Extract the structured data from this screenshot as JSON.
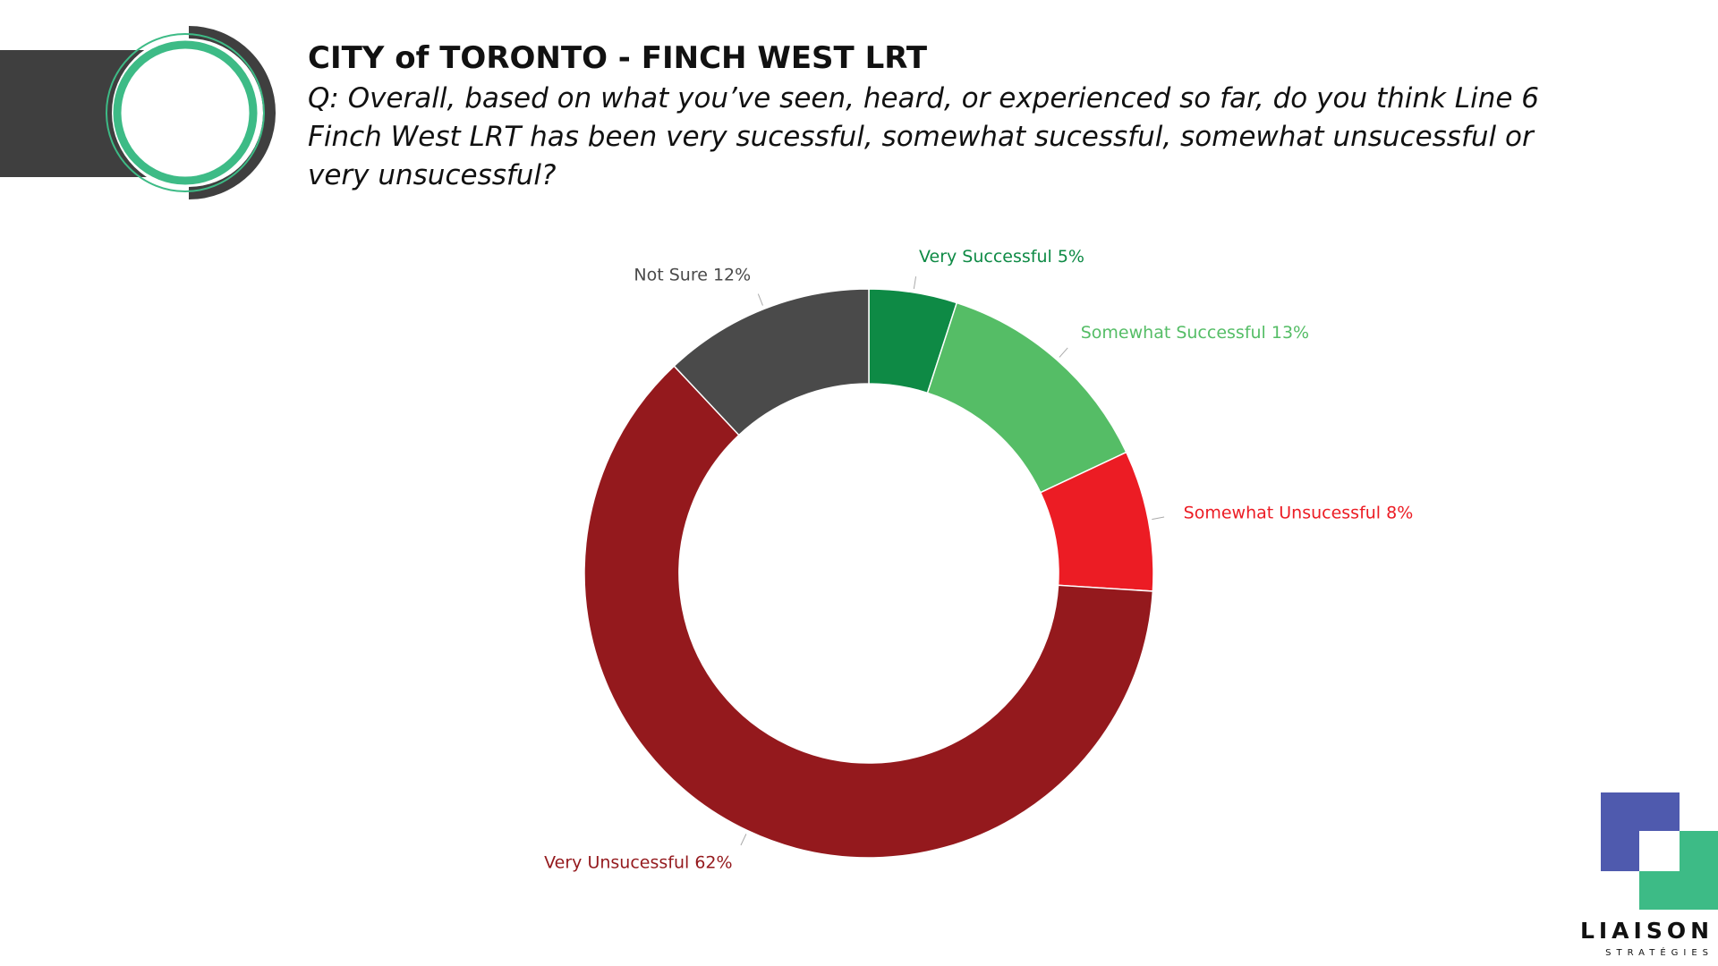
{
  "header": {
    "title": "CITY of TORONTO - FINCH WEST LRT",
    "question": [
      "Q: Overall, based on what you’ve seen, heard, or experienced so far, do you think Line 6",
      "Finch West LRT has been very sucessful, somewhat sucessful, somewhat unsucessful or",
      "very unsucessful?"
    ]
  },
  "logo": {
    "name": "LIAISON",
    "tagline": "STRATÉGIES"
  },
  "chart_data": {
    "type": "donut",
    "values": [
      5,
      13,
      8,
      62,
      12
    ],
    "value_labels": [
      "Very Successful 5%",
      "Somewhat Successful 13%",
      "Somewhat Unsucessful 8%",
      "Very Unsucessful 62%",
      "Not Sure 12%"
    ],
    "colors": [
      "#0e8a45",
      "#55bd66",
      "#ec1c24",
      "#94191d",
      "#4a4a4a"
    ]
  }
}
